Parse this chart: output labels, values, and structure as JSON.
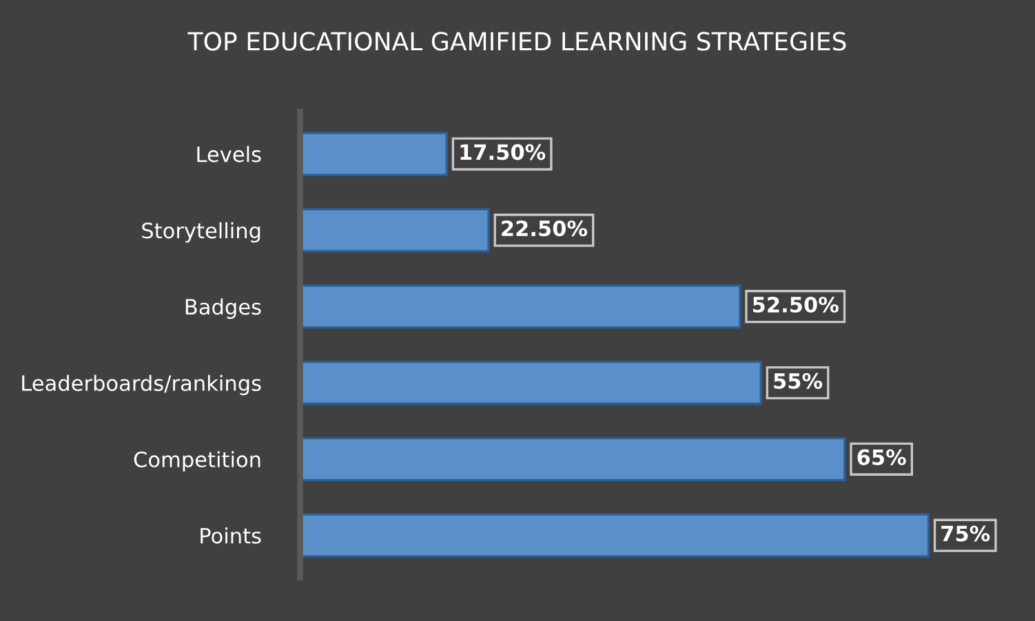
{
  "chart_data": {
    "type": "bar",
    "orientation": "horizontal",
    "title": "TOP EDUCATIONAL GAMIFIED LEARNING STRATEGIES",
    "categories": [
      "Levels",
      "Storytelling",
      "Badges",
      "Leaderboards/rankings",
      "Competition",
      "Points"
    ],
    "values": [
      17.5,
      22.5,
      52.5,
      55,
      65,
      75
    ],
    "value_labels": [
      "17.50%",
      "22.50%",
      "52.50%",
      "55%",
      "65%",
      "75%"
    ],
    "color": "#5b8fc9",
    "grid": false,
    "legend": false
  }
}
